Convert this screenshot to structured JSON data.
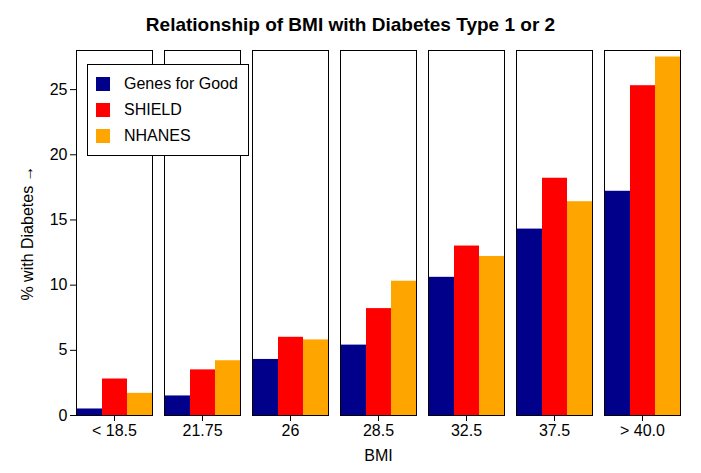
{
  "chart_data": {
    "type": "bar",
    "title": "Relationship of BMI with Diabetes Type 1 or 2",
    "x_label": "BMI",
    "y_label": "% with Diabetes",
    "categories": [
      "< 18.5",
      "21.75",
      "26",
      "28.5",
      "32.5",
      "37.5",
      "> 40.0"
    ],
    "series": [
      {
        "name": "Genes for Good",
        "color": "#00008b",
        "values": [
          0.5,
          1.5,
          4.3,
          5.4,
          10.6,
          14.3,
          17.2
        ]
      },
      {
        "name": "SHIELD",
        "color": "#ff0000",
        "values": [
          2.8,
          3.5,
          6.0,
          8.2,
          13.0,
          18.2,
          25.3
        ]
      },
      {
        "name": "NHANES",
        "color": "#ffa500",
        "values": [
          1.7,
          4.2,
          5.8,
          10.3,
          12.2,
          16.4,
          27.5
        ]
      }
    ],
    "ylim": [
      0,
      28
    ],
    "yticks": [
      0,
      5,
      10,
      15,
      20,
      25
    ],
    "legend": "top-left"
  }
}
